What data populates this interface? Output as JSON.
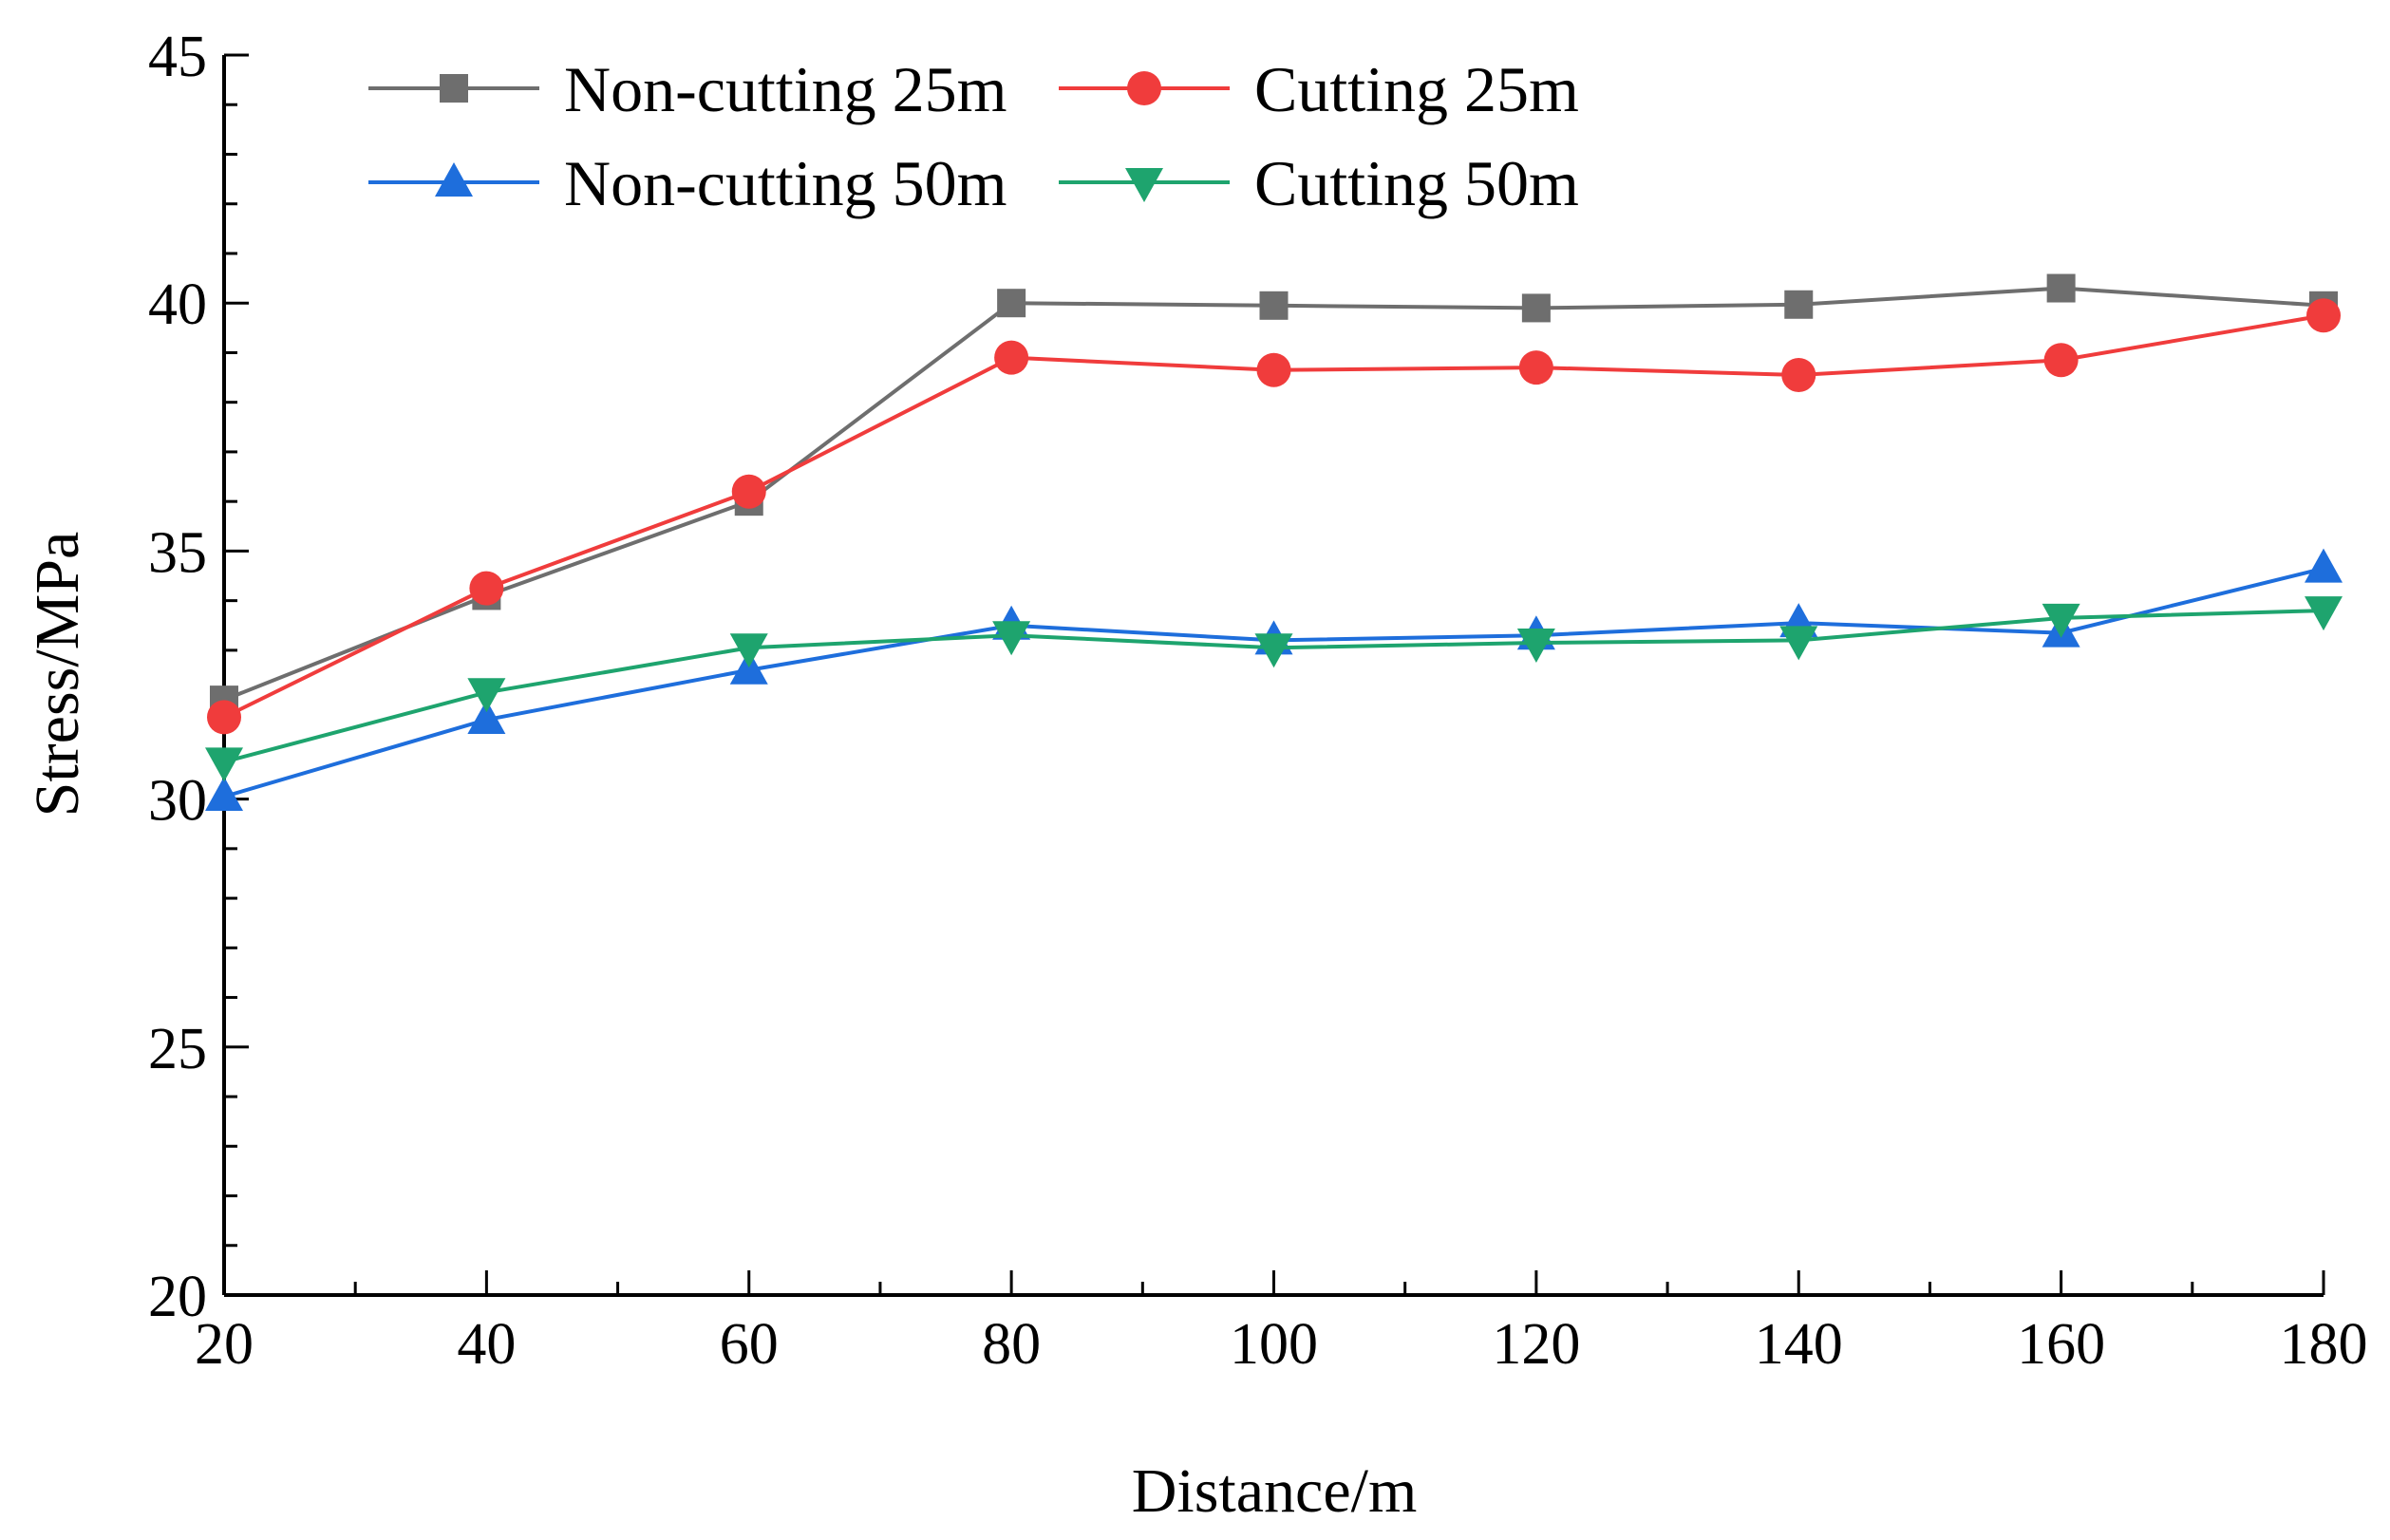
{
  "chart_data": {
    "type": "line",
    "title": "",
    "xlabel": "Distance/m",
    "ylabel": "Stress/MPa",
    "xlim": [
      20,
      180
    ],
    "ylim": [
      20,
      45
    ],
    "xticks": [
      "20",
      "40",
      "60",
      "80",
      "100",
      "120",
      "140",
      "160",
      "180"
    ],
    "yticks": [
      "20",
      "25",
      "30",
      "35",
      "40",
      "45"
    ],
    "x": [
      20,
      40,
      60,
      80,
      100,
      120,
      140,
      160,
      180
    ],
    "grid": false,
    "legend_position": "top-left",
    "series": [
      {
        "name": "Non-cutting 25m",
        "marker": "square",
        "color": "#6e6e6e",
        "values": [
          32.0,
          34.1,
          36.0,
          40.0,
          39.95,
          39.9,
          39.97,
          40.3,
          39.95
        ]
      },
      {
        "name": "Cutting 25m",
        "marker": "circle",
        "color": "#f03c3c",
        "values": [
          31.65,
          34.25,
          36.2,
          38.9,
          38.65,
          38.7,
          38.55,
          38.85,
          39.75
        ]
      },
      {
        "name": "Non-cutting 50m",
        "marker": "triangle-up",
        "color": "#1e6edc",
        "values": [
          30.05,
          31.6,
          32.6,
          33.5,
          33.2,
          33.3,
          33.55,
          33.35,
          34.65
        ]
      },
      {
        "name": "Cutting 50m",
        "marker": "triangle-down",
        "color": "#1ea46e",
        "values": [
          30.75,
          32.15,
          33.05,
          33.3,
          33.05,
          33.15,
          33.2,
          33.65,
          33.8
        ]
      }
    ]
  }
}
